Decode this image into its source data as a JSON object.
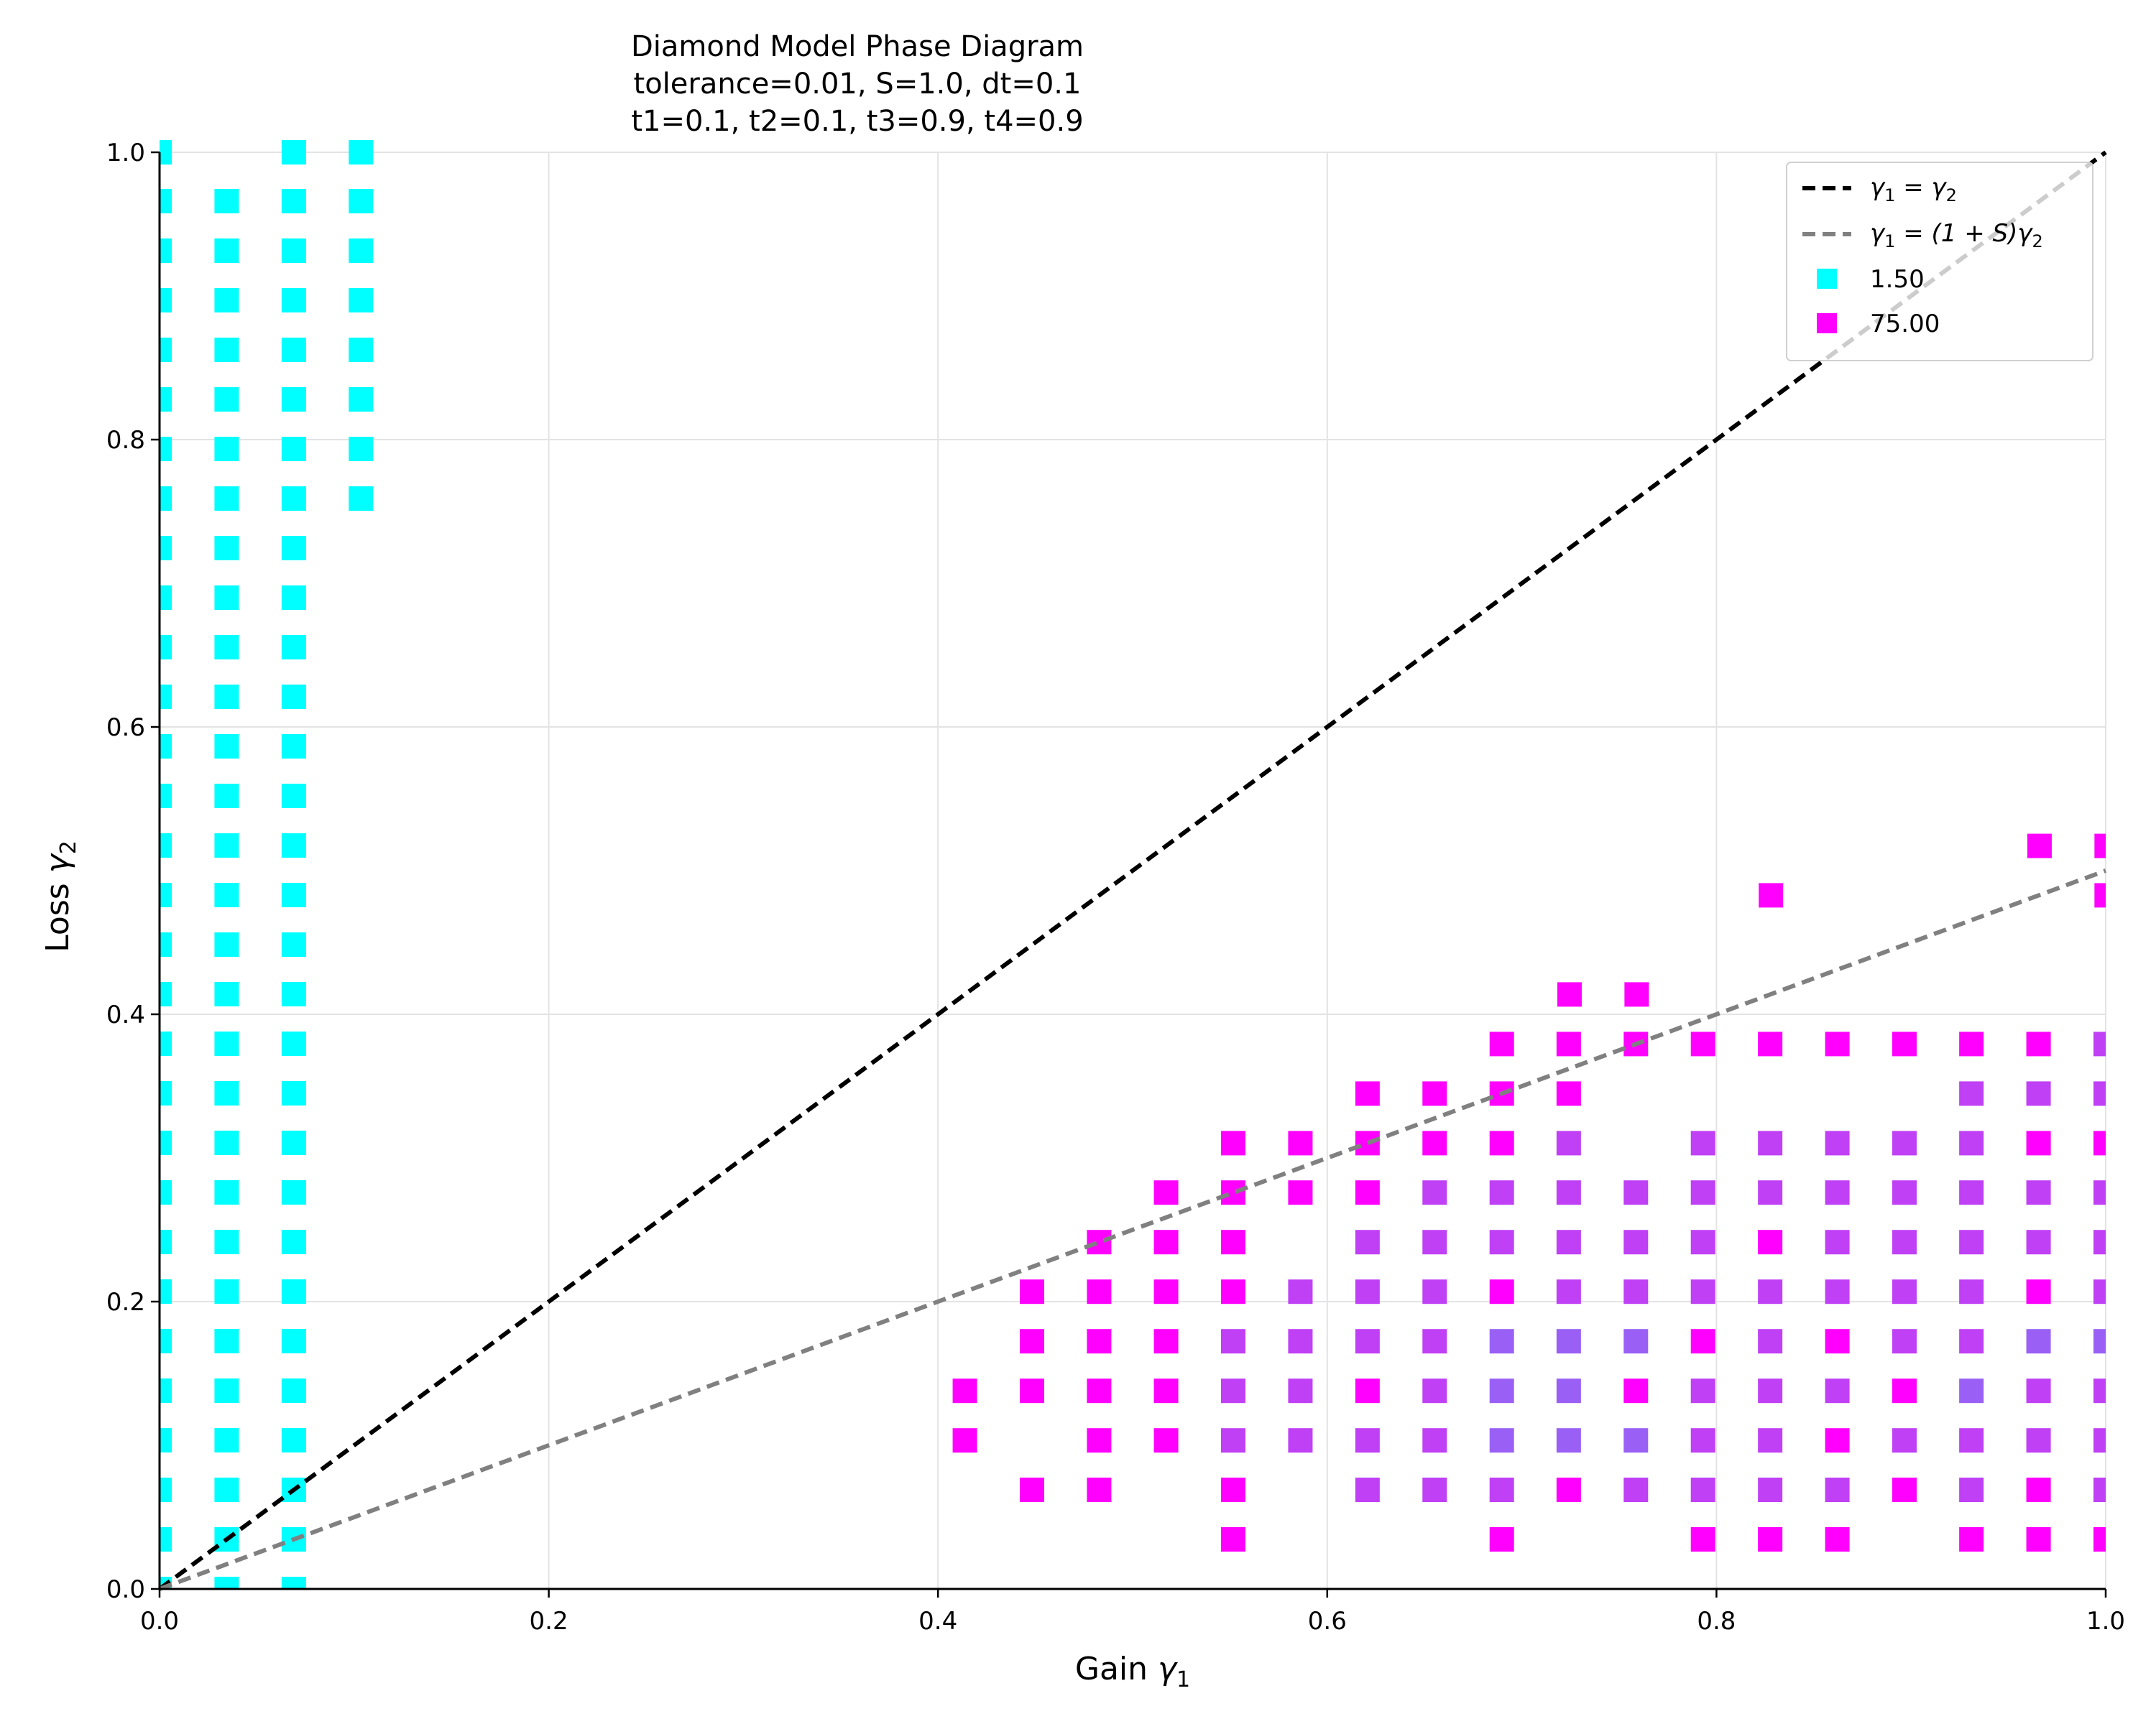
{
  "chart_data": {
    "type": "scatter",
    "title_lines": [
      "Diamond Model Phase Diagram",
      "tolerance=0.01, S=1.0, dt=0.1",
      "t1=0.1, t2=0.1, t3=0.9, t4=0.9"
    ],
    "xlabel": {
      "text": "Gain ",
      "symbol": "γ",
      "sub": "1"
    },
    "ylabel": {
      "text": "Loss ",
      "symbol": "γ",
      "sub": "2"
    },
    "xlim": [
      0,
      1
    ],
    "ylim": [
      0,
      1
    ],
    "xticks": [
      "0.0",
      "0.2",
      "0.4",
      "0.6",
      "0.8",
      "1.0"
    ],
    "yticks": [
      "0.0",
      "0.2",
      "0.4",
      "0.6",
      "0.8",
      "1.0"
    ],
    "grid": true,
    "legend_position": "top-right",
    "lines": [
      {
        "label_pre": "γ",
        "label_sub": "1",
        "label_mid": " = γ",
        "label_sub2": "2",
        "label_post": "",
        "x": [
          0,
          1
        ],
        "y": [
          0,
          1
        ],
        "color": "#000000",
        "style": "dashed"
      },
      {
        "label_pre": "γ",
        "label_sub": "1",
        "label_mid": " = (1 + S)γ",
        "label_sub2": "2",
        "label_post": "",
        "x": [
          0,
          1
        ],
        "y": [
          0,
          0.5
        ],
        "color": "#808080",
        "style": "dashed"
      }
    ],
    "legend_markers": [
      {
        "label": "1.50",
        "color": "#00ffff"
      },
      {
        "label": "75.00",
        "color": "#ff00ff"
      }
    ],
    "grid_step": 0.0345,
    "colors": {
      "c": "#00ffff",
      "m": "#ff00ff",
      "p": "#c040f5",
      "v": "#9a60f5"
    },
    "cyan_columns": [
      {
        "x": 0.0,
        "y_min": 0.0,
        "y_max": 1.0
      },
      {
        "x": 0.0345,
        "y_min": 0.0,
        "y_max": 0.966
      },
      {
        "x": 0.069,
        "y_min": 0.0,
        "y_max": 1.0
      },
      {
        "x": 0.1035,
        "y_min": 0.759,
        "y_max": 1.0
      }
    ],
    "magenta_rows": [
      {
        "y": 0.5172,
        "xi": [
          28,
          29
        ]
      },
      {
        "y": 0.4828,
        "xi": [
          24,
          29
        ]
      },
      {
        "y": 0.4138,
        "xi": [
          21,
          22
        ]
      }
    ],
    "upper_col_pattern": {
      "ys": [
        0.3793,
        0.3448,
        0.3103,
        0.2759,
        0.2414,
        0.2069,
        0.1724,
        0.1379,
        0.1034,
        0.069,
        0.0345
      ]
    },
    "field_points": [
      [
        0.4138,
        0.1379,
        "m"
      ],
      [
        0.4138,
        0.1034,
        "m"
      ],
      [
        0.4483,
        0.2069,
        "m"
      ],
      [
        0.4483,
        0.1724,
        "m"
      ],
      [
        0.4483,
        0.1379,
        "m"
      ],
      [
        0.4483,
        0.069,
        "m"
      ],
      [
        0.4828,
        0.2414,
        "m"
      ],
      [
        0.4828,
        0.2069,
        "m"
      ],
      [
        0.4828,
        0.1724,
        "m"
      ],
      [
        0.4828,
        0.1379,
        "m"
      ],
      [
        0.4828,
        0.1034,
        "m"
      ],
      [
        0.4828,
        0.069,
        "m"
      ],
      [
        0.5172,
        0.2759,
        "m"
      ],
      [
        0.5172,
        0.2414,
        "m"
      ],
      [
        0.5172,
        0.2069,
        "m"
      ],
      [
        0.5172,
        0.1724,
        "m"
      ],
      [
        0.5172,
        0.1379,
        "m"
      ],
      [
        0.5172,
        0.1034,
        "m"
      ],
      [
        0.5517,
        0.3103,
        "m"
      ],
      [
        0.5517,
        0.2759,
        "m"
      ],
      [
        0.5517,
        0.2414,
        "m"
      ],
      [
        0.5517,
        0.2069,
        "m"
      ],
      [
        0.5517,
        0.1724,
        "p"
      ],
      [
        0.5517,
        0.1379,
        "p"
      ],
      [
        0.5517,
        0.1034,
        "p"
      ],
      [
        0.5517,
        0.069,
        "m"
      ],
      [
        0.5517,
        0.0345,
        "m"
      ],
      [
        0.5862,
        0.3103,
        "m"
      ],
      [
        0.5862,
        0.2759,
        "m"
      ],
      [
        0.5862,
        0.2069,
        "p"
      ],
      [
        0.5862,
        0.1724,
        "p"
      ],
      [
        0.5862,
        0.1379,
        "p"
      ],
      [
        0.5862,
        0.1034,
        "p"
      ],
      [
        0.6207,
        0.3448,
        "m"
      ],
      [
        0.6207,
        0.3103,
        "m"
      ],
      [
        0.6207,
        0.2759,
        "m"
      ],
      [
        0.6207,
        0.2414,
        "p"
      ],
      [
        0.6207,
        0.2069,
        "p"
      ],
      [
        0.6207,
        0.1724,
        "p"
      ],
      [
        0.6207,
        0.1379,
        "m"
      ],
      [
        0.6207,
        0.1034,
        "p"
      ],
      [
        0.6207,
        0.069,
        "p"
      ],
      [
        0.6552,
        0.3448,
        "m"
      ],
      [
        0.6552,
        0.3103,
        "m"
      ],
      [
        0.6552,
        0.2759,
        "p"
      ],
      [
        0.6552,
        0.2414,
        "p"
      ],
      [
        0.6552,
        0.2069,
        "p"
      ],
      [
        0.6552,
        0.1724,
        "p"
      ],
      [
        0.6552,
        0.1379,
        "p"
      ],
      [
        0.6552,
        0.1034,
        "p"
      ],
      [
        0.6552,
        0.069,
        "p"
      ],
      [
        0.6897,
        0.3793,
        "m"
      ],
      [
        0.6897,
        0.3448,
        "m"
      ],
      [
        0.6897,
        0.3103,
        "m"
      ],
      [
        0.6897,
        0.2759,
        "p"
      ],
      [
        0.6897,
        0.2414,
        "p"
      ],
      [
        0.6897,
        0.2069,
        "m"
      ],
      [
        0.6897,
        0.1724,
        "v"
      ],
      [
        0.6897,
        0.1379,
        "v"
      ],
      [
        0.6897,
        0.1034,
        "v"
      ],
      [
        0.6897,
        0.069,
        "p"
      ],
      [
        0.6897,
        0.0345,
        "m"
      ],
      [
        0.7241,
        0.3793,
        "m"
      ],
      [
        0.7241,
        0.3448,
        "m"
      ],
      [
        0.7241,
        0.3103,
        "p"
      ],
      [
        0.7241,
        0.2759,
        "p"
      ],
      [
        0.7241,
        0.2414,
        "p"
      ],
      [
        0.7241,
        0.2069,
        "p"
      ],
      [
        0.7241,
        0.1724,
        "v"
      ],
      [
        0.7241,
        0.1379,
        "v"
      ],
      [
        0.7241,
        0.1034,
        "v"
      ],
      [
        0.7241,
        0.069,
        "m"
      ],
      [
        0.7586,
        0.3793,
        "m"
      ],
      [
        0.7586,
        0.2759,
        "p"
      ],
      [
        0.7586,
        0.2414,
        "p"
      ],
      [
        0.7586,
        0.2069,
        "p"
      ],
      [
        0.7586,
        0.1724,
        "v"
      ],
      [
        0.7586,
        0.1379,
        "m"
      ],
      [
        0.7586,
        0.1034,
        "v"
      ],
      [
        0.7586,
        0.069,
        "p"
      ],
      [
        0.7931,
        0.3793,
        "m"
      ],
      [
        0.7931,
        0.3103,
        "p"
      ],
      [
        0.7931,
        0.2759,
        "p"
      ],
      [
        0.7931,
        0.2414,
        "p"
      ],
      [
        0.7931,
        0.2069,
        "p"
      ],
      [
        0.7931,
        0.1724,
        "m"
      ],
      [
        0.7931,
        0.1379,
        "p"
      ],
      [
        0.7931,
        0.1034,
        "p"
      ],
      [
        0.7931,
        0.069,
        "p"
      ],
      [
        0.7931,
        0.0345,
        "m"
      ],
      [
        0.8276,
        0.3793,
        "m"
      ],
      [
        0.8276,
        0.3103,
        "p"
      ],
      [
        0.8276,
        0.2759,
        "p"
      ],
      [
        0.8276,
        0.2414,
        "m"
      ],
      [
        0.8276,
        0.2069,
        "p"
      ],
      [
        0.8276,
        0.1724,
        "p"
      ],
      [
        0.8276,
        0.1379,
        "p"
      ],
      [
        0.8276,
        0.1034,
        "p"
      ],
      [
        0.8276,
        0.069,
        "p"
      ],
      [
        0.8276,
        0.0345,
        "m"
      ],
      [
        0.8621,
        0.3793,
        "m"
      ],
      [
        0.8621,
        0.3103,
        "p"
      ],
      [
        0.8621,
        0.2759,
        "p"
      ],
      [
        0.8621,
        0.2414,
        "p"
      ],
      [
        0.8621,
        0.2069,
        "p"
      ],
      [
        0.8621,
        0.1724,
        "m"
      ],
      [
        0.8621,
        0.1379,
        "p"
      ],
      [
        0.8621,
        0.1034,
        "m"
      ],
      [
        0.8621,
        0.069,
        "p"
      ],
      [
        0.8621,
        0.0345,
        "m"
      ],
      [
        0.8966,
        0.3793,
        "m"
      ],
      [
        0.8966,
        0.3103,
        "p"
      ],
      [
        0.8966,
        0.2759,
        "p"
      ],
      [
        0.8966,
        0.2414,
        "p"
      ],
      [
        0.8966,
        0.2069,
        "p"
      ],
      [
        0.8966,
        0.1724,
        "p"
      ],
      [
        0.8966,
        0.1379,
        "m"
      ],
      [
        0.8966,
        0.1034,
        "p"
      ],
      [
        0.8966,
        0.069,
        "m"
      ],
      [
        0.931,
        0.3793,
        "m"
      ],
      [
        0.931,
        0.3448,
        "p"
      ],
      [
        0.931,
        0.3103,
        "p"
      ],
      [
        0.931,
        0.2759,
        "p"
      ],
      [
        0.931,
        0.2414,
        "p"
      ],
      [
        0.931,
        0.2069,
        "p"
      ],
      [
        0.931,
        0.1724,
        "p"
      ],
      [
        0.931,
        0.1379,
        "v"
      ],
      [
        0.931,
        0.1034,
        "p"
      ],
      [
        0.931,
        0.069,
        "p"
      ],
      [
        0.931,
        0.0345,
        "m"
      ],
      [
        0.9655,
        0.3793,
        "m"
      ],
      [
        0.9655,
        0.3448,
        "p"
      ],
      [
        0.9655,
        0.3103,
        "m"
      ],
      [
        0.9655,
        0.2759,
        "p"
      ],
      [
        0.9655,
        0.2414,
        "p"
      ],
      [
        0.9655,
        0.2069,
        "m"
      ],
      [
        0.9655,
        0.1724,
        "v"
      ],
      [
        0.9655,
        0.1379,
        "p"
      ],
      [
        0.9655,
        0.1034,
        "p"
      ],
      [
        0.9655,
        0.069,
        "m"
      ],
      [
        0.9655,
        0.0345,
        "m"
      ],
      [
        1.0,
        0.3793,
        "p"
      ],
      [
        1.0,
        0.3448,
        "p"
      ],
      [
        1.0,
        0.3103,
        "m"
      ],
      [
        1.0,
        0.2759,
        "p"
      ],
      [
        1.0,
        0.2414,
        "p"
      ],
      [
        1.0,
        0.2069,
        "p"
      ],
      [
        1.0,
        0.1724,
        "v"
      ],
      [
        1.0,
        0.1379,
        "p"
      ],
      [
        1.0,
        0.1034,
        "p"
      ],
      [
        1.0,
        0.069,
        "p"
      ],
      [
        1.0,
        0.0345,
        "m"
      ]
    ]
  }
}
